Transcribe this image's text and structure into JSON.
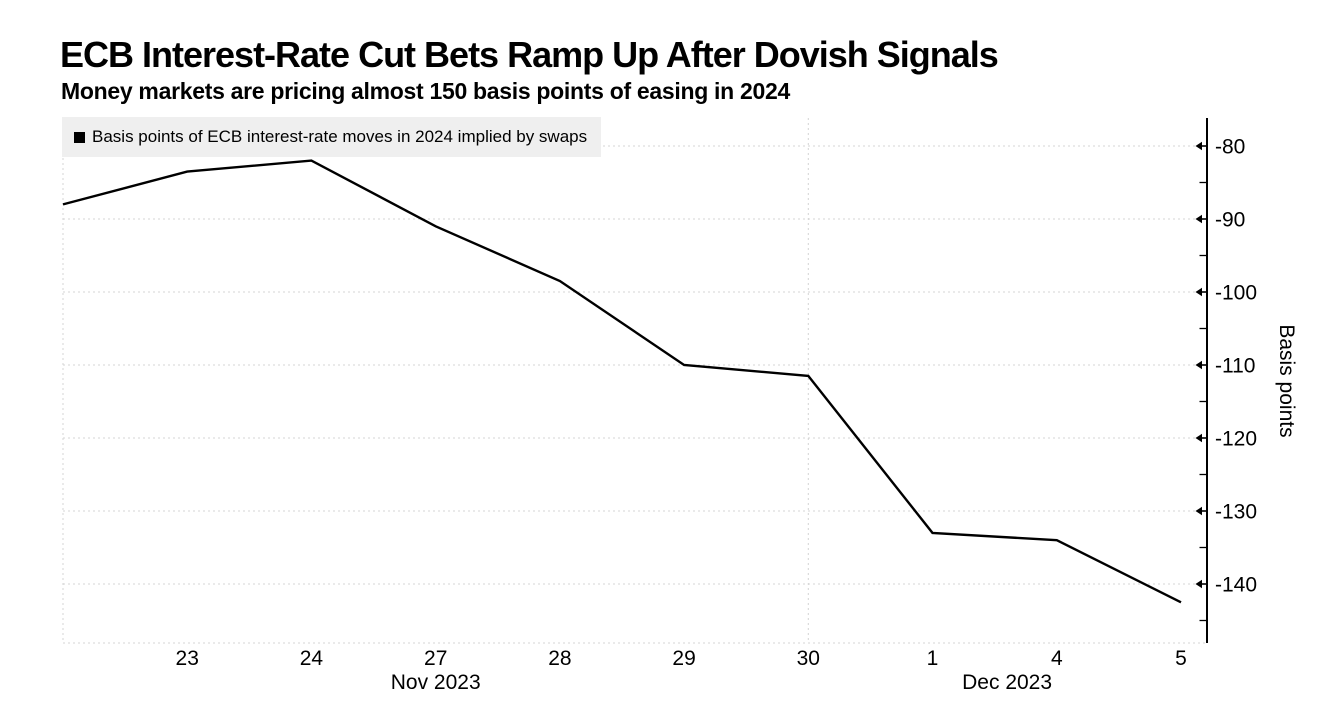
{
  "chart_data": {
    "type": "line",
    "title": "ECB Interest-Rate Cut Bets Ramp Up After Dovish Signals",
    "subtitle": "Money markets are pricing almost 150 basis points of easing in 2024",
    "legend": {
      "label": "Basis points of ECB interest-rate moves in 2024 implied by swaps",
      "swatch_color": "#000000",
      "background": "#efefef",
      "position": "top-left inside plot"
    },
    "ylabel": "Basis points",
    "ylabel_side": "right",
    "ylim": [
      -148,
      -76
    ],
    "y_major_ticks": [
      -80,
      -90,
      -100,
      -110,
      -120,
      -130,
      -140
    ],
    "y_minor_ticks": [
      -85,
      -95,
      -105,
      -115,
      -125,
      -135,
      -145
    ],
    "x_tick_labels": [
      "",
      "23",
      "24",
      "27",
      "28",
      "29",
      "30",
      "1",
      "4",
      "5"
    ],
    "month_labels": [
      {
        "text": "Nov 2023",
        "position_index": 3
      },
      {
        "text": "Dec 2023",
        "position_index": 7.6
      }
    ],
    "series": [
      {
        "name": "Basis points of ECB interest-rate moves in 2024 implied by swaps",
        "color": "#000000",
        "values": [
          -88,
          -83.5,
          -82,
          -91,
          -98.5,
          -110,
          -111.5,
          -133,
          -134,
          -142.5
        ]
      }
    ],
    "grid": {
      "style": "dashed",
      "color": "#d4d4d4",
      "horizontal": "at each major tick plus bottom baseline",
      "vertical_gridline_indices": [
        0,
        6
      ]
    },
    "axis_color": "#000000"
  }
}
